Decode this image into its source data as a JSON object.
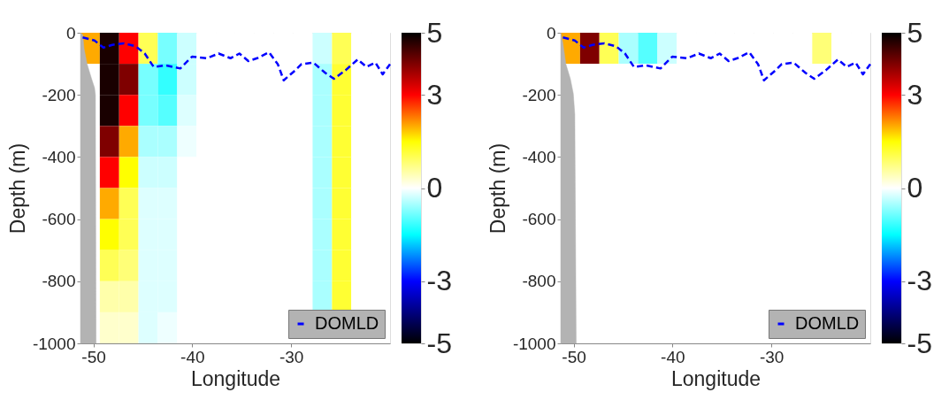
{
  "chart_data": [
    {
      "type": "heatmap",
      "xlabel": "Longitude",
      "ylabel": "Depth (m)",
      "xlim": [
        -51.3,
        -20
      ],
      "xticks": [
        -50,
        -40,
        -30
      ],
      "ylim": [
        -1000,
        0
      ],
      "yticks": [
        -1000,
        -800,
        -600,
        -400,
        -200,
        0
      ],
      "clim": [
        -5,
        5
      ],
      "cticks": [
        -5,
        -3,
        0,
        3,
        5
      ],
      "legend": "bottom right",
      "x": [
        -50.32,
        -48.37,
        -46.41,
        -44.46,
        -42.5,
        -40.54,
        -38.59,
        -36.63,
        -34.68,
        -32.72,
        -30.76,
        -28.81,
        -26.85,
        -24.89,
        -22.94,
        -20.98
      ],
      "y": [
        -50,
        -150,
        -250,
        -350,
        -450,
        -550,
        -650,
        -750,
        -850,
        -950
      ],
      "cells": [
        [
          2,
          4.8,
          3,
          1,
          -0.8,
          -0.3,
          0,
          0,
          0,
          0,
          0,
          0,
          -0.3,
          1,
          0,
          0
        ],
        [
          null,
          4.8,
          4,
          -0.8,
          -1.2,
          -0.3,
          0,
          0,
          0,
          0,
          0,
          0,
          -0.5,
          1.2,
          0,
          0
        ],
        [
          null,
          4.8,
          3,
          -0.8,
          -1,
          -0.2,
          0,
          0,
          0,
          0,
          0,
          0,
          -0.5,
          1.2,
          0,
          0
        ],
        [
          null,
          4,
          2,
          -0.5,
          -0.5,
          -0.1,
          0,
          0,
          0,
          0,
          0,
          0,
          -0.5,
          1.2,
          0,
          0
        ],
        [
          null,
          3,
          1.5,
          -0.3,
          -0.3,
          0,
          0,
          0,
          0,
          0,
          0,
          0,
          -0.5,
          1.2,
          0,
          0
        ],
        [
          null,
          2,
          1,
          -0.2,
          -0.2,
          0,
          0,
          0,
          0,
          0,
          0,
          0,
          -0.5,
          1.2,
          0,
          0
        ],
        [
          null,
          1.5,
          1,
          -0.2,
          -0.2,
          0,
          0,
          0,
          0,
          0,
          0,
          0,
          -0.5,
          1.2,
          0,
          0
        ],
        [
          null,
          1,
          0.8,
          -0.2,
          -0.2,
          0,
          0,
          0,
          0,
          0,
          0,
          0,
          -0.5,
          1.2,
          0,
          0
        ],
        [
          null,
          0.5,
          0.5,
          -0.2,
          -0.2,
          0,
          0,
          0,
          0,
          0,
          0,
          0,
          -0.5,
          1.2,
          0,
          0
        ],
        [
          null,
          0.3,
          0.3,
          -0.2,
          -0.1,
          0,
          0,
          0,
          0,
          0,
          0,
          null,
          null,
          null,
          null,
          null
        ]
      ],
      "series": [
        {
          "type": "line",
          "name": "DOMLD",
          "color": "#0000ff",
          "line_style": "dashed",
          "x": [
            -51.08,
            -49.88,
            -48.98,
            -48.09,
            -46.89,
            -45.7,
            -44.8,
            -43.9,
            -42.71,
            -41.21,
            -40.02,
            -38.52,
            -37.33,
            -36.13,
            -35.23,
            -34.33,
            -33.44,
            -32.24,
            -31.35,
            -30.75,
            -29.55,
            -28.95,
            -27.76,
            -26.56,
            -25.67,
            -24.47,
            -23.27,
            -22.38,
            -21.48,
            -20.74,
            -20.0
          ],
          "values": [
            -15,
            -25,
            -48,
            -39,
            -34,
            -44,
            -67,
            -110,
            -105,
            -115,
            -77,
            -82,
            -67,
            -82,
            -67,
            -91,
            -82,
            -63,
            -101,
            -153,
            -120,
            -101,
            -96,
            -129,
            -148,
            -120,
            -86,
            -110,
            -96,
            -134,
            -101
          ]
        },
        {
          "type": "area",
          "color": "#b3b3b3",
          "x": [
            -51.3,
            -51.08,
            -50.93,
            -50.63,
            -50.18,
            -49.88,
            -49.79,
            -49.73,
            -51.3
          ],
          "values": [
            0,
            -6,
            -53,
            -101,
            -148,
            -177,
            -201,
            -1000,
            -1000
          ]
        }
      ]
    },
    {
      "type": "heatmap",
      "xlabel": "Longitude",
      "ylabel": "Depth (m)",
      "xlim": [
        -51.3,
        -20
      ],
      "xticks": [
        -50,
        -40,
        -30
      ],
      "ylim": [
        -1000,
        0
      ],
      "yticks": [
        -1000,
        -800,
        -600,
        -400,
        -200,
        0
      ],
      "clim": [
        -5,
        5
      ],
      "cticks": [
        -5,
        -3,
        0,
        3,
        5
      ],
      "legend": "bottom right",
      "x": [
        -50.32,
        -48.37,
        -46.41,
        -44.46,
        -42.5,
        -40.54,
        -38.59,
        -36.63,
        -34.68,
        -32.72,
        -30.76,
        -28.81,
        -26.85,
        -24.89,
        -22.94,
        -20.98
      ],
      "y": [
        -50,
        -150,
        -250,
        -350,
        -450,
        -550,
        -650,
        -750,
        -850,
        -950
      ],
      "cells": [
        [
          2,
          4,
          1,
          -0.5,
          -1,
          -0.3,
          0,
          0,
          0,
          0,
          0,
          0,
          0,
          0.8,
          0,
          0
        ],
        [
          null,
          0,
          0,
          0,
          0,
          0,
          0,
          0,
          0,
          0,
          0,
          0,
          0,
          0,
          0,
          0
        ],
        [
          null,
          0,
          0,
          0,
          0,
          0,
          0,
          0,
          0,
          0,
          0,
          0,
          0,
          0,
          0,
          0
        ],
        [
          null,
          0,
          0,
          0,
          0,
          0,
          0,
          0,
          0,
          0,
          0,
          0,
          0,
          0,
          0,
          0
        ],
        [
          null,
          0,
          0,
          0,
          0,
          0,
          0,
          0,
          0,
          0,
          0,
          0,
          0,
          0,
          0,
          0
        ],
        [
          null,
          0,
          0,
          0,
          0,
          0,
          0,
          0,
          0,
          0,
          0,
          0,
          0,
          0,
          0,
          0
        ],
        [
          null,
          0,
          0,
          0,
          0,
          0,
          0,
          0,
          0,
          0,
          0,
          0,
          0,
          0,
          0,
          0
        ],
        [
          null,
          0,
          0,
          0,
          0,
          0,
          0,
          0,
          0,
          0,
          0,
          0,
          0,
          0,
          0,
          0
        ],
        [
          null,
          0,
          0,
          0,
          0,
          0,
          0,
          0,
          0,
          0,
          0,
          0,
          0,
          0,
          0,
          0
        ],
        [
          null,
          0,
          0,
          0,
          0,
          0,
          0,
          0,
          0,
          0,
          0,
          null,
          null,
          null,
          null,
          null
        ]
      ],
      "series": [
        {
          "type": "line",
          "name": "DOMLD",
          "color": "#0000ff",
          "line_style": "dashed",
          "x": [
            -51.08,
            -49.88,
            -48.98,
            -48.09,
            -46.89,
            -45.7,
            -44.8,
            -43.9,
            -42.71,
            -41.21,
            -40.02,
            -38.52,
            -37.33,
            -36.13,
            -35.23,
            -34.33,
            -33.44,
            -32.24,
            -31.35,
            -30.75,
            -29.55,
            -28.95,
            -27.76,
            -26.56,
            -25.67,
            -24.47,
            -23.27,
            -22.38,
            -21.48,
            -20.74,
            -20.0
          ],
          "values": [
            -15,
            -25,
            -48,
            -39,
            -34,
            -44,
            -67,
            -110,
            -105,
            -115,
            -77,
            -82,
            -67,
            -82,
            -67,
            -91,
            -82,
            -63,
            -101,
            -153,
            -120,
            -101,
            -96,
            -129,
            -148,
            -120,
            -86,
            -110,
            -96,
            -134,
            -101
          ]
        },
        {
          "type": "area",
          "color": "#b3b3b3",
          "x": [
            -51.3,
            -51.08,
            -50.78,
            -50.33,
            -50.03,
            -49.88,
            -49.74,
            -51.3
          ],
          "values": [
            0,
            -34,
            -101,
            -148,
            -196,
            -262,
            -1000,
            -1000
          ]
        }
      ]
    }
  ]
}
